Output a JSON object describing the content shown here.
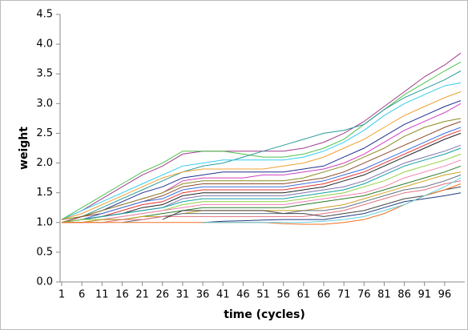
{
  "chart_data": {
    "type": "line",
    "x_label": "time (cycles)",
    "y_label": "weight",
    "x": [
      1,
      6,
      11,
      16,
      21,
      26,
      31,
      36,
      41,
      46,
      51,
      56,
      61,
      66,
      71,
      76,
      81,
      86,
      91,
      96,
      100
    ],
    "xlim": [
      1,
      100
    ],
    "xticks": [
      1,
      6,
      11,
      16,
      21,
      26,
      31,
      36,
      41,
      46,
      51,
      56,
      61,
      66,
      71,
      76,
      81,
      86,
      91,
      96
    ],
    "ylim": [
      0,
      4.5
    ],
    "yticks": [
      {
        "value": 0,
        "label": "0.0"
      },
      0.5,
      {
        "value": 1,
        "label": "1.0"
      },
      1.5,
      {
        "value": 2,
        "label": "2.0"
      },
      2.5,
      {
        "value": 3,
        "label": "3.0"
      },
      3.5,
      {
        "value": 4,
        "label": "4.0"
      },
      4.5
    ],
    "grid": false,
    "series": [
      {
        "color": "#a03c8c",
        "values": [
          1.05,
          1.2,
          1.4,
          1.6,
          1.8,
          1.95,
          2.15,
          2.2,
          2.2,
          2.2,
          2.2,
          2.2,
          2.25,
          2.35,
          2.5,
          2.7,
          2.95,
          3.2,
          3.45,
          3.65,
          3.85
        ]
      },
      {
        "color": "#4cc24c",
        "values": [
          1.05,
          1.25,
          1.45,
          1.65,
          1.85,
          2.0,
          2.2,
          2.2,
          2.2,
          2.15,
          2.1,
          2.1,
          2.15,
          2.25,
          2.4,
          2.65,
          2.9,
          3.15,
          3.35,
          3.55,
          3.7
        ]
      },
      {
        "color": "#2a9a9a",
        "values": [
          1.0,
          1.1,
          1.25,
          1.4,
          1.55,
          1.7,
          1.85,
          1.95,
          2.0,
          2.1,
          2.2,
          2.3,
          2.4,
          2.5,
          2.55,
          2.65,
          2.9,
          3.1,
          3.25,
          3.4,
          3.55
        ]
      },
      {
        "color": "#33ccee",
        "values": [
          1.05,
          1.2,
          1.35,
          1.5,
          1.65,
          1.8,
          1.95,
          2.0,
          2.05,
          2.05,
          2.05,
          2.05,
          2.1,
          2.2,
          2.35,
          2.55,
          2.8,
          3.0,
          3.15,
          3.3,
          3.35
        ]
      },
      {
        "color": "#f0a030",
        "values": [
          1.05,
          1.15,
          1.3,
          1.45,
          1.6,
          1.75,
          1.85,
          1.9,
          1.9,
          1.9,
          1.9,
          1.95,
          2.0,
          2.1,
          2.25,
          2.4,
          2.6,
          2.8,
          2.95,
          3.1,
          3.2
        ]
      },
      {
        "color": "#1f2f8f",
        "values": [
          1.0,
          1.1,
          1.2,
          1.35,
          1.5,
          1.6,
          1.75,
          1.8,
          1.85,
          1.85,
          1.85,
          1.85,
          1.9,
          1.95,
          2.1,
          2.25,
          2.45,
          2.65,
          2.8,
          2.95,
          3.05
        ]
      },
      {
        "color": "#d040c0",
        "values": [
          1.0,
          1.1,
          1.2,
          1.3,
          1.4,
          1.5,
          1.7,
          1.75,
          1.75,
          1.75,
          1.8,
          1.8,
          1.85,
          1.9,
          2.0,
          2.15,
          2.35,
          2.55,
          2.7,
          2.85,
          3.0
        ]
      },
      {
        "color": "#8a8a20",
        "values": [
          1.05,
          1.1,
          1.2,
          1.3,
          1.4,
          1.5,
          1.65,
          1.7,
          1.7,
          1.7,
          1.7,
          1.7,
          1.75,
          1.85,
          1.95,
          2.1,
          2.25,
          2.45,
          2.6,
          2.7,
          2.75
        ]
      },
      {
        "color": "#8b4a2a",
        "values": [
          1.0,
          1.1,
          1.15,
          1.25,
          1.35,
          1.45,
          1.6,
          1.65,
          1.65,
          1.65,
          1.65,
          1.65,
          1.7,
          1.75,
          1.85,
          2.0,
          2.15,
          2.3,
          2.45,
          2.6,
          2.7
        ]
      },
      {
        "color": "#3a6ee0",
        "values": [
          1.0,
          1.05,
          1.15,
          1.25,
          1.35,
          1.4,
          1.55,
          1.6,
          1.6,
          1.6,
          1.6,
          1.6,
          1.65,
          1.7,
          1.8,
          1.9,
          2.05,
          2.2,
          2.35,
          2.5,
          2.6
        ]
      },
      {
        "color": "#e03030",
        "values": [
          1.0,
          1.05,
          1.1,
          1.2,
          1.3,
          1.35,
          1.5,
          1.55,
          1.55,
          1.55,
          1.55,
          1.55,
          1.6,
          1.65,
          1.75,
          1.85,
          2.0,
          2.15,
          2.3,
          2.45,
          2.55
        ]
      },
      {
        "color": "#222222",
        "values": [
          1.0,
          1.05,
          1.1,
          1.15,
          1.25,
          1.3,
          1.45,
          1.5,
          1.5,
          1.5,
          1.5,
          1.5,
          1.55,
          1.6,
          1.7,
          1.8,
          1.95,
          2.1,
          2.25,
          2.4,
          2.5
        ]
      },
      {
        "color": "#8070b0",
        "values": [
          1.0,
          1.05,
          1.1,
          1.15,
          1.2,
          1.25,
          1.4,
          1.45,
          1.45,
          1.45,
          1.45,
          1.45,
          1.5,
          1.55,
          1.6,
          1.7,
          1.85,
          2.0,
          2.1,
          2.2,
          2.3
        ]
      },
      {
        "color": "#10a0a0",
        "values": [
          1.0,
          1.05,
          1.1,
          1.15,
          1.2,
          1.25,
          1.35,
          1.4,
          1.4,
          1.4,
          1.4,
          1.4,
          1.45,
          1.5,
          1.55,
          1.65,
          1.8,
          1.95,
          2.05,
          2.15,
          2.25
        ]
      },
      {
        "color": "#90d040",
        "values": [
          1.0,
          1.05,
          1.05,
          1.1,
          1.15,
          1.2,
          1.3,
          1.35,
          1.35,
          1.35,
          1.35,
          1.35,
          1.4,
          1.45,
          1.5,
          1.6,
          1.7,
          1.85,
          1.95,
          2.05,
          2.15
        ]
      },
      {
        "color": "#f080b0",
        "values": [
          1.0,
          1.0,
          1.05,
          1.1,
          1.15,
          1.2,
          1.25,
          1.3,
          1.3,
          1.3,
          1.3,
          1.3,
          1.35,
          1.4,
          1.45,
          1.5,
          1.6,
          1.75,
          1.85,
          1.95,
          2.05
        ]
      },
      {
        "color": "#2a7a2a",
        "values": [
          1.0,
          1.0,
          1.05,
          1.05,
          1.1,
          1.15,
          1.2,
          1.25,
          1.25,
          1.25,
          1.25,
          1.25,
          1.3,
          1.35,
          1.4,
          1.45,
          1.55,
          1.65,
          1.75,
          1.85,
          1.95
        ]
      },
      {
        "color": "#d0a020",
        "values": [
          1.0,
          1.0,
          1.05,
          1.05,
          1.1,
          1.1,
          1.15,
          1.2,
          1.2,
          1.2,
          1.2,
          1.2,
          1.2,
          1.25,
          1.3,
          1.4,
          1.5,
          1.6,
          1.7,
          1.8,
          1.85
        ]
      },
      {
        "color": "#607080",
        "values": [
          null,
          null,
          null,
          1.0,
          1.05,
          1.1,
          1.15,
          1.15,
          1.15,
          1.15,
          1.15,
          1.15,
          1.2,
          1.2,
          1.25,
          1.35,
          1.45,
          1.55,
          1.6,
          1.7,
          1.8
        ]
      },
      {
        "color": "#e07080",
        "values": [
          1.0,
          1.0,
          1.0,
          1.05,
          1.05,
          1.1,
          1.1,
          1.1,
          1.1,
          1.1,
          1.1,
          1.1,
          1.1,
          1.15,
          1.2,
          1.3,
          1.4,
          1.5,
          1.55,
          1.65,
          1.7
        ]
      },
      {
        "color": "#444444",
        "values": [
          null,
          null,
          null,
          null,
          null,
          1.05,
          1.2,
          1.2,
          1.2,
          1.2,
          1.2,
          1.15,
          1.15,
          1.1,
          1.15,
          1.2,
          1.3,
          1.4,
          1.45,
          1.55,
          1.6
        ]
      },
      {
        "color": "#203a80",
        "values": [
          null,
          null,
          null,
          null,
          null,
          null,
          null,
          1.0,
          1.02,
          1.03,
          1.04,
          1.05,
          1.05,
          1.05,
          1.1,
          1.15,
          1.25,
          1.35,
          1.4,
          1.45,
          1.5
        ]
      },
      {
        "color": "#f07020",
        "values": [
          1.0,
          1.0,
          1.0,
          1.0,
          1.0,
          1.0,
          1.0,
          1.0,
          1.0,
          1.0,
          1.0,
          0.98,
          0.97,
          0.97,
          1.0,
          1.05,
          1.15,
          1.3,
          1.45,
          1.55,
          1.65
        ]
      },
      {
        "color": "#60d0e0",
        "values": [
          null,
          null,
          null,
          null,
          null,
          null,
          null,
          1.0,
          1.0,
          1.0,
          1.0,
          1.0,
          1.0,
          1.02,
          1.05,
          1.1,
          1.2,
          1.3,
          1.45,
          1.6,
          1.75
        ]
      }
    ]
  }
}
